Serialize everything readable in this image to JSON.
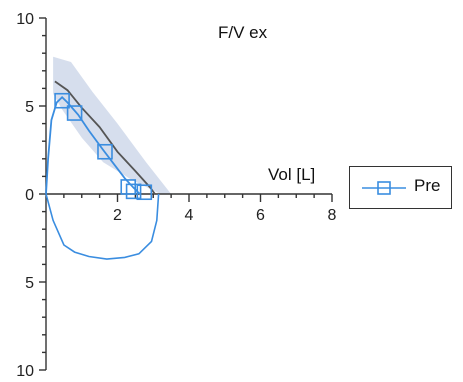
{
  "chart_data": {
    "type": "line",
    "title": "F/V ex",
    "xlabel": "Vol [L]",
    "ylabel": "",
    "xlim": [
      0,
      8
    ],
    "ylim": [
      -10,
      10
    ],
    "x_ticks": [
      "2",
      "4",
      "6",
      "8"
    ],
    "y_ticks": [
      "10",
      "5",
      "0",
      "5",
      "10"
    ],
    "legend_position": "right",
    "series": [
      {
        "name": "Pre",
        "color": "#3a8de0",
        "marker": "square",
        "expiratory": [
          [
            0,
            0
          ],
          [
            0.06,
            2.0
          ],
          [
            0.15,
            4.2
          ],
          [
            0.3,
            5.2
          ],
          [
            0.45,
            5.5
          ],
          [
            0.6,
            5.2
          ],
          [
            0.9,
            4.5
          ],
          [
            1.2,
            3.6
          ],
          [
            1.6,
            2.5
          ],
          [
            1.9,
            1.7
          ],
          [
            2.2,
            0.9
          ],
          [
            2.45,
            0.35
          ],
          [
            2.6,
            0.05
          ],
          [
            2.65,
            0
          ]
        ],
        "markers": [
          [
            0.45,
            5.3
          ],
          [
            0.8,
            4.6
          ],
          [
            1.65,
            2.4
          ],
          [
            2.3,
            0.4
          ],
          [
            2.45,
            0.15
          ],
          [
            2.75,
            0.1
          ]
        ],
        "inspiratory": [
          [
            0,
            0
          ],
          [
            0.2,
            -1.5
          ],
          [
            0.5,
            -2.9
          ],
          [
            0.8,
            -3.3
          ],
          [
            1.2,
            -3.55
          ],
          [
            1.7,
            -3.7
          ],
          [
            2.2,
            -3.6
          ],
          [
            2.6,
            -3.4
          ],
          [
            2.95,
            -2.7
          ],
          [
            3.1,
            -1.5
          ],
          [
            3.15,
            0
          ]
        ]
      },
      {
        "name": "",
        "color": "#555555",
        "expiratory": [
          [
            0.25,
            6.4
          ],
          [
            0.6,
            5.9
          ],
          [
            1.0,
            4.9
          ],
          [
            1.5,
            3.8
          ],
          [
            2.0,
            2.4
          ],
          [
            2.5,
            1.3
          ],
          [
            2.9,
            0.4
          ],
          [
            3.05,
            0
          ]
        ]
      }
    ],
    "predicted_band": {
      "color": "#cfd8ea",
      "upper": [
        [
          0.2,
          7.8
        ],
        [
          0.7,
          7.5
        ],
        [
          1.3,
          5.8
        ],
        [
          2.0,
          4.0
        ],
        [
          2.8,
          1.8
        ],
        [
          3.5,
          0
        ]
      ],
      "lower": [
        [
          3.2,
          0
        ],
        [
          2.4,
          0.8
        ],
        [
          1.6,
          1.8
        ],
        [
          1.0,
          3.2
        ],
        [
          0.45,
          4.8
        ],
        [
          0.2,
          5.7
        ]
      ]
    }
  }
}
